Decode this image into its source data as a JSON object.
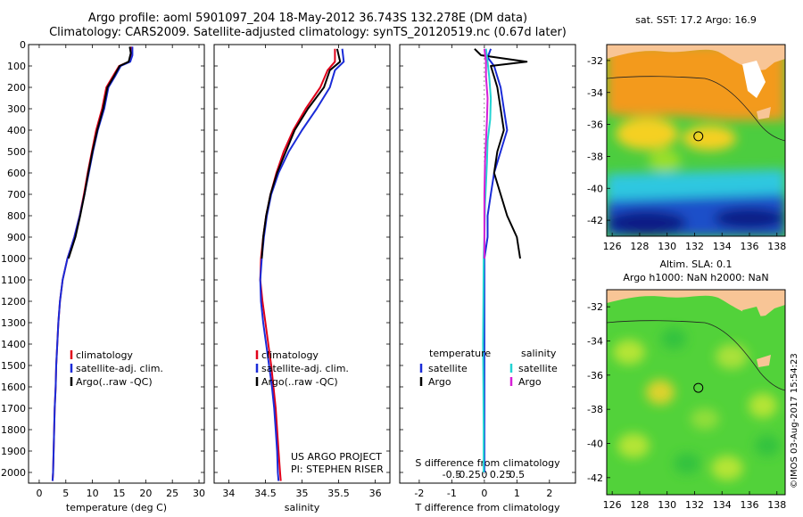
{
  "header": {
    "line1": "Argo profile: aoml 5901097_204 18-May-2012 36.743S 132.278E (DM data)",
    "line2": "Climatology: CARS2009. Satellite-adjusted climatology: synTS_20120519.nc (0.67d later)"
  },
  "legend": {
    "climatology": "climatology",
    "satellite": "satellite-adj. clim.",
    "argo": "Argo(..raw -QC)",
    "temperature_title": "temperature",
    "salinity_title": "salinity",
    "satellite_short": "satellite",
    "argo_short": "Argo"
  },
  "credits": {
    "project": "US ARGO PROJECT",
    "pi": "PI: STEPHEN RISER",
    "imos": "©IMOS 03-Aug-2017 15:54:23"
  },
  "maps": {
    "top_title": "sat. SST: 17.2 Argo: 16.9",
    "bottom_title_1": "Altim. SLA: 0.1",
    "bottom_title_2": "Argo h1000: NaN h2000: NaN",
    "lon_ticks": [
      "126",
      "128",
      "130",
      "132",
      "134",
      "136",
      "138"
    ],
    "lat_ticks": [
      "-32",
      "-34",
      "-36",
      "-38",
      "-40",
      "-42"
    ],
    "profile_lon": 132.278,
    "profile_lat": -36.743,
    "colors": {
      "land": "#f8c596",
      "warm": "#f39a1f",
      "green": "#4ccd3f",
      "cyan": "#2fc7e0",
      "blue": "#1b4fc9",
      "darkblue": "#0a1f86",
      "sla": "#52d23a"
    }
  },
  "chart_data": [
    {
      "type": "line",
      "xlabel": "temperature (deg C)",
      "ylabel": "",
      "xlim": [
        -2,
        31
      ],
      "ylim": [
        2050,
        0
      ],
      "x_ticks": [
        0,
        5,
        10,
        15,
        20,
        25,
        30
      ],
      "y_ticks": [
        0,
        100,
        200,
        300,
        400,
        500,
        600,
        700,
        800,
        900,
        1000,
        1100,
        1200,
        1300,
        1400,
        1500,
        1600,
        1700,
        1800,
        1900,
        2000
      ],
      "series": [
        {
          "name": "climatology",
          "color": "#e0001a",
          "points": [
            [
              17.3,
              10
            ],
            [
              17.3,
              50
            ],
            [
              16.9,
              80
            ],
            [
              15.0,
              100
            ],
            [
              13.8,
              150
            ],
            [
              12.6,
              200
            ],
            [
              11.8,
              300
            ],
            [
              10.7,
              400
            ],
            [
              9.9,
              500
            ],
            [
              9.1,
              600
            ],
            [
              8.4,
              700
            ],
            [
              7.6,
              800
            ],
            [
              6.6,
              900
            ],
            [
              5.3,
              1000
            ],
            [
              4.4,
              1100
            ],
            [
              3.9,
              1200
            ],
            [
              3.6,
              1300
            ],
            [
              3.4,
              1400
            ],
            [
              3.2,
              1500
            ],
            [
              3.1,
              1600
            ],
            [
              2.9,
              1700
            ],
            [
              2.8,
              1800
            ],
            [
              2.7,
              1900
            ],
            [
              2.6,
              2000
            ],
            [
              2.5,
              2040
            ]
          ]
        },
        {
          "name": "satellite-adj. clim.",
          "color": "#1a2bd8",
          "points": [
            [
              17.5,
              10
            ],
            [
              17.5,
              50
            ],
            [
              17.1,
              80
            ],
            [
              15.3,
              100
            ],
            [
              14.2,
              150
            ],
            [
              13.0,
              200
            ],
            [
              12.2,
              300
            ],
            [
              11.0,
              400
            ],
            [
              10.1,
              500
            ],
            [
              9.3,
              600
            ],
            [
              8.5,
              700
            ],
            [
              7.6,
              800
            ],
            [
              6.6,
              900
            ],
            [
              5.3,
              1000
            ],
            [
              4.4,
              1100
            ],
            [
              3.9,
              1200
            ],
            [
              3.6,
              1300
            ],
            [
              3.4,
              1400
            ],
            [
              3.2,
              1500
            ],
            [
              3.1,
              1600
            ],
            [
              2.9,
              1700
            ],
            [
              2.8,
              1800
            ],
            [
              2.7,
              1900
            ],
            [
              2.6,
              2000
            ],
            [
              2.5,
              2040
            ]
          ]
        },
        {
          "name": "Argo(..raw -QC)",
          "color": "#000000",
          "points": [
            [
              17.0,
              10
            ],
            [
              17.2,
              40
            ],
            [
              16.8,
              80
            ],
            [
              15.1,
              100
            ],
            [
              14.0,
              150
            ],
            [
              12.8,
              200
            ],
            [
              12.0,
              300
            ],
            [
              10.9,
              400
            ],
            [
              10.0,
              500
            ],
            [
              9.2,
              600
            ],
            [
              8.5,
              700
            ],
            [
              7.7,
              800
            ],
            [
              6.8,
              900
            ],
            [
              5.5,
              1000
            ]
          ]
        }
      ]
    },
    {
      "type": "line",
      "xlabel": "salinity",
      "ylabel": "",
      "xlim": [
        33.8,
        36.2
      ],
      "ylim": [
        2050,
        0
      ],
      "x_ticks": [
        34,
        34.5,
        35,
        35.5,
        36
      ],
      "series": [
        {
          "name": "climatology",
          "color": "#e0001a",
          "points": [
            [
              35.45,
              20
            ],
            [
              35.45,
              80
            ],
            [
              35.35,
              120
            ],
            [
              35.25,
              200
            ],
            [
              35.05,
              300
            ],
            [
              34.88,
              400
            ],
            [
              34.75,
              500
            ],
            [
              34.65,
              600
            ],
            [
              34.57,
              700
            ],
            [
              34.51,
              800
            ],
            [
              34.47,
              900
            ],
            [
              34.44,
              1000
            ],
            [
              34.43,
              1100
            ],
            [
              34.46,
              1200
            ],
            [
              34.5,
              1300
            ],
            [
              34.54,
              1400
            ],
            [
              34.58,
              1500
            ],
            [
              34.61,
              1600
            ],
            [
              34.64,
              1700
            ],
            [
              34.66,
              1800
            ],
            [
              34.68,
              1900
            ],
            [
              34.7,
              2000
            ],
            [
              34.71,
              2040
            ]
          ]
        },
        {
          "name": "satellite-adj. clim.",
          "color": "#1a2bd8",
          "points": [
            [
              35.55,
              20
            ],
            [
              35.57,
              80
            ],
            [
              35.45,
              120
            ],
            [
              35.38,
              200
            ],
            [
              35.2,
              300
            ],
            [
              35.0,
              400
            ],
            [
              34.82,
              500
            ],
            [
              34.68,
              600
            ],
            [
              34.58,
              700
            ],
            [
              34.52,
              800
            ],
            [
              34.48,
              900
            ],
            [
              34.45,
              1000
            ],
            [
              34.43,
              1100
            ],
            [
              34.44,
              1200
            ],
            [
              34.47,
              1300
            ],
            [
              34.51,
              1400
            ],
            [
              34.55,
              1500
            ],
            [
              34.59,
              1600
            ],
            [
              34.62,
              1700
            ],
            [
              34.64,
              1800
            ],
            [
              34.66,
              1900
            ],
            [
              34.67,
              2000
            ],
            [
              34.68,
              2040
            ]
          ]
        },
        {
          "name": "Argo(..raw -QC)",
          "color": "#000000",
          "points": [
            [
              35.48,
              20
            ],
            [
              35.52,
              80
            ],
            [
              35.38,
              120
            ],
            [
              35.3,
              200
            ],
            [
              35.08,
              300
            ],
            [
              34.9,
              400
            ],
            [
              34.78,
              500
            ],
            [
              34.66,
              600
            ],
            [
              34.57,
              700
            ],
            [
              34.51,
              800
            ],
            [
              34.47,
              900
            ],
            [
              34.45,
              1000
            ]
          ]
        }
      ]
    },
    {
      "type": "line",
      "xlabel": "T difference from climatology",
      "xlabel2": "S difference from climatology",
      "ylabel": "",
      "xlim": [
        -2.6,
        2.8
      ],
      "ylim": [
        2050,
        0
      ],
      "x_ticks": [
        -2,
        -1,
        0,
        1,
        2
      ],
      "x_ticks2": [
        "-0.5",
        "-0.25",
        "0",
        "0.25",
        "0.5"
      ],
      "series": [
        {
          "name": "temperature satellite",
          "color": "#1a2bd8",
          "points": [
            [
              0.2,
              20
            ],
            [
              0.1,
              60
            ],
            [
              0.3,
              100
            ],
            [
              0.4,
              150
            ],
            [
              0.5,
              200
            ],
            [
              0.6,
              300
            ],
            [
              0.7,
              400
            ],
            [
              0.5,
              500
            ],
            [
              0.3,
              600
            ],
            [
              0.2,
              700
            ],
            [
              0.1,
              800
            ],
            [
              0.1,
              900
            ],
            [
              0.0,
              1000
            ],
            [
              0.0,
              1100
            ],
            [
              0.0,
              1200
            ],
            [
              0.0,
              1400
            ],
            [
              0.0,
              1600
            ],
            [
              0.0,
              1800
            ],
            [
              0.0,
              2000
            ]
          ]
        },
        {
          "name": "temperature Argo",
          "color": "#000000",
          "points": [
            [
              -0.3,
              20
            ],
            [
              -0.1,
              50
            ],
            [
              1.3,
              80
            ],
            [
              0.2,
              100
            ],
            [
              0.3,
              150
            ],
            [
              0.4,
              200
            ],
            [
              0.5,
              300
            ],
            [
              0.6,
              400
            ],
            [
              0.4,
              500
            ],
            [
              0.3,
              600
            ],
            [
              0.5,
              700
            ],
            [
              0.7,
              800
            ],
            [
              1.0,
              900
            ],
            [
              1.1,
              1000
            ]
          ]
        },
        {
          "name": "salinity satellite",
          "color": "#22d3d3",
          "points": [
            [
              0.05,
              20
            ],
            [
              0.1,
              80
            ],
            [
              0.15,
              150
            ],
            [
              0.2,
              250
            ],
            [
              0.18,
              350
            ],
            [
              0.1,
              450
            ],
            [
              0.08,
              550
            ],
            [
              0.05,
              650
            ],
            [
              0.02,
              750
            ],
            [
              0.0,
              900
            ],
            [
              -0.02,
              1000
            ],
            [
              -0.03,
              1200
            ],
            [
              -0.04,
              1400
            ],
            [
              -0.03,
              1600
            ],
            [
              -0.02,
              1800
            ],
            [
              -0.02,
              2000
            ]
          ]
        },
        {
          "name": "salinity Argo",
          "color": "#d61fd6",
          "points": [
            [
              0.0,
              20
            ],
            [
              0.05,
              80
            ],
            [
              0.05,
              150
            ],
            [
              0.1,
              250
            ],
            [
              0.08,
              350
            ],
            [
              0.05,
              450
            ],
            [
              0.02,
              550
            ],
            [
              0.0,
              700
            ],
            [
              0.0,
              900
            ],
            [
              0.0,
              1000
            ]
          ]
        }
      ]
    }
  ]
}
